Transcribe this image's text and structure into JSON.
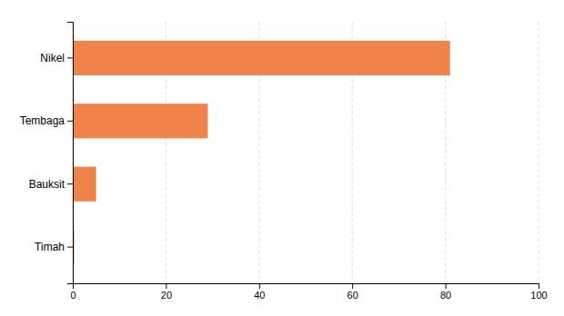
{
  "chart_data": {
    "type": "bar",
    "orientation": "horizontal",
    "categories": [
      "Timah",
      "Bauksit",
      "Tembaga",
      "Nikel"
    ],
    "values": [
      0.3,
      5.0,
      29.0,
      81.0
    ],
    "color": "#f0834a",
    "xlim": [
      0,
      100
    ],
    "xticks": [
      0,
      20,
      40,
      60,
      80,
      100
    ],
    "grid": true
  }
}
